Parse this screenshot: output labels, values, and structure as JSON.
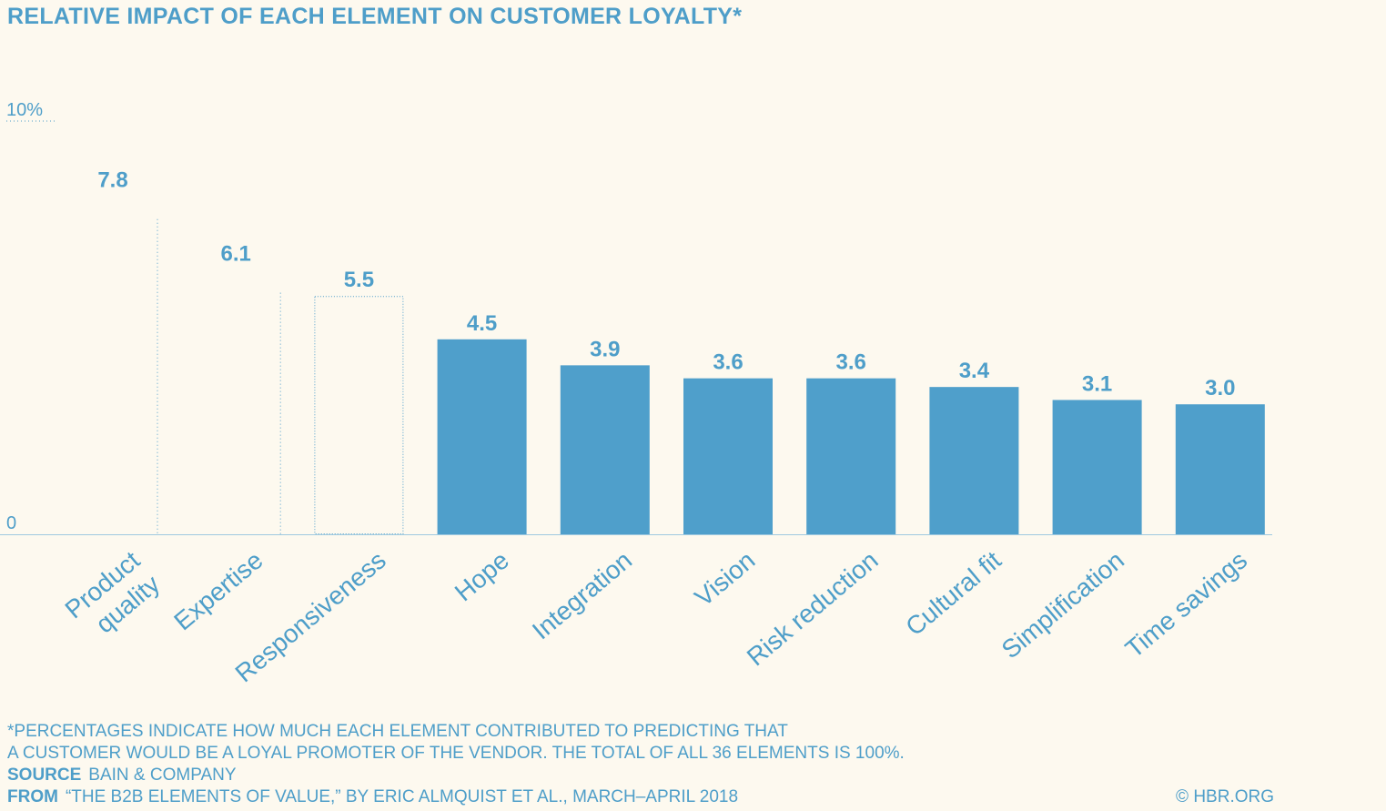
{
  "title": "RELATIVE IMPACT OF EACH ELEMENT ON CUSTOMER LOYALTY*",
  "colors": {
    "bar": "#4f9fcb",
    "text": "#4e9ec9",
    "background": "#fdf9ef"
  },
  "chart_data": {
    "type": "bar",
    "title": "RELATIVE IMPACT OF EACH ELEMENT ON CUSTOMER LOYALTY*",
    "categories": [
      "Product quality",
      "Expertise",
      "Responsiveness",
      "Hope",
      "Integration",
      "Vision",
      "Risk reduction",
      "Cultural fit",
      "Simplification",
      "Time savings"
    ],
    "category_lines": [
      [
        "Product",
        "quality"
      ],
      [
        "Expertise"
      ],
      [
        "Responsiveness"
      ],
      [
        "Hope"
      ],
      [
        "Integration"
      ],
      [
        "Vision"
      ],
      [
        "Risk reduction"
      ],
      [
        "Cultural fit"
      ],
      [
        "Simplification"
      ],
      [
        "Time savings"
      ]
    ],
    "values": [
      7.8,
      6.1,
      5.5,
      4.5,
      3.9,
      3.6,
      3.6,
      3.4,
      3.1,
      3.0
    ],
    "value_labels": [
      "7.8",
      "6.1",
      "5.5",
      "4.5",
      "3.9",
      "3.6",
      "3.6",
      "3.4",
      "3.1",
      "3.0"
    ],
    "bar_styles": [
      "dotted-line",
      "dotted-line",
      "outline",
      "filled",
      "filled",
      "filled",
      "filled",
      "filled",
      "filled",
      "filled"
    ],
    "ylim": [
      0,
      10
    ],
    "y_tick_labels": [
      "0",
      "10%"
    ],
    "xlabel": "",
    "ylabel": "",
    "grid": false,
    "legend": "none"
  },
  "footnote": {
    "line1": "*PERCENTAGES INDICATE HOW MUCH EACH ELEMENT CONTRIBUTED TO PREDICTING THAT",
    "line2": "A CUSTOMER WOULD BE A LOYAL PROMOTER OF THE VENDOR. THE TOTAL OF ALL 36 ELEMENTS IS 100%.",
    "source_label": "SOURCE",
    "source_text": "BAIN & COMPANY",
    "from_label": "FROM",
    "from_text": "“THE B2B ELEMENTS OF VALUE,” BY ERIC ALMQUIST ET AL., MARCH–APRIL 2018"
  },
  "credit": "© HBR.ORG"
}
